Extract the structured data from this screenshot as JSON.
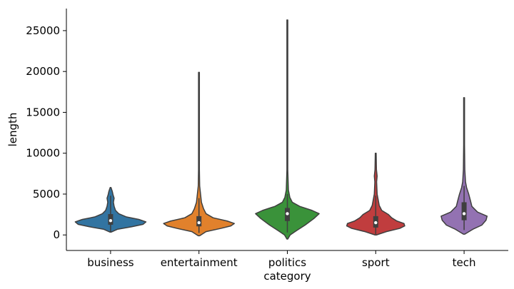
{
  "chart_data": {
    "type": "violin",
    "xlabel": "category",
    "ylabel": "length",
    "ylim": [
      -1900,
      27700
    ],
    "yticks": [
      0,
      5000,
      10000,
      15000,
      20000,
      25000
    ],
    "grid": false,
    "categories": [
      "business",
      "entertainment",
      "politics",
      "sport",
      "tech"
    ],
    "colors": [
      "#3274a1",
      "#e1812c",
      "#3a923a",
      "#c03d3e",
      "#9372b2"
    ],
    "violins": [
      {
        "category": "business",
        "min": 350,
        "max": 5800,
        "q1": 1250,
        "median": 1750,
        "q3": 2550,
        "whisker_low": 350,
        "whisker_high": 4800,
        "profile": [
          [
            350,
            0.02
          ],
          [
            700,
            0.2
          ],
          [
            1000,
            0.6
          ],
          [
            1300,
            0.92
          ],
          [
            1600,
            1.0
          ],
          [
            1900,
            0.8
          ],
          [
            2200,
            0.45
          ],
          [
            2600,
            0.23
          ],
          [
            3000,
            0.14
          ],
          [
            3500,
            0.1
          ],
          [
            4000,
            0.08
          ],
          [
            4500,
            0.1
          ],
          [
            4900,
            0.07
          ],
          [
            5300,
            0.05
          ],
          [
            5800,
            0.01
          ]
        ]
      },
      {
        "category": "entertainment",
        "min": -100,
        "max": 19900,
        "q1": 1050,
        "median": 1500,
        "q3": 2300,
        "whisker_low": 250,
        "whisker_high": 4500,
        "profile": [
          [
            -100,
            0.02
          ],
          [
            400,
            0.2
          ],
          [
            800,
            0.62
          ],
          [
            1100,
            0.9
          ],
          [
            1400,
            1.0
          ],
          [
            1700,
            0.8
          ],
          [
            2100,
            0.4
          ],
          [
            2600,
            0.2
          ],
          [
            3200,
            0.13
          ],
          [
            4000,
            0.07
          ],
          [
            4800,
            0.05
          ],
          [
            6000,
            0.02
          ],
          [
            8000,
            0.012
          ],
          [
            12000,
            0.01
          ],
          [
            16000,
            0.009
          ],
          [
            19900,
            0.008
          ]
        ]
      },
      {
        "category": "politics",
        "min": -500,
        "max": 26300,
        "q1": 1700,
        "median": 2600,
        "q3": 3300,
        "whisker_low": 300,
        "whisker_high": 5000,
        "profile": [
          [
            -500,
            0.01
          ],
          [
            0,
            0.08
          ],
          [
            500,
            0.25
          ],
          [
            1200,
            0.5
          ],
          [
            2000,
            0.75
          ],
          [
            2600,
            0.9
          ],
          [
            3000,
            0.7
          ],
          [
            3500,
            0.35
          ],
          [
            4000,
            0.14
          ],
          [
            4600,
            0.07
          ],
          [
            5500,
            0.03
          ],
          [
            8000,
            0.012
          ],
          [
            12000,
            0.01
          ],
          [
            18000,
            0.008
          ],
          [
            26300,
            0.007
          ]
        ]
      },
      {
        "category": "sport",
        "min": 0,
        "max": 10000,
        "q1": 900,
        "median": 1500,
        "q3": 2300,
        "whisker_low": 100,
        "whisker_high": 4800,
        "profile": [
          [
            0,
            0.02
          ],
          [
            400,
            0.3
          ],
          [
            800,
            0.68
          ],
          [
            1100,
            0.82
          ],
          [
            1400,
            0.8
          ],
          [
            1700,
            0.6
          ],
          [
            2100,
            0.45
          ],
          [
            2500,
            0.36
          ],
          [
            3000,
            0.17
          ],
          [
            3600,
            0.1
          ],
          [
            4300,
            0.07
          ],
          [
            5000,
            0.04
          ],
          [
            6500,
            0.025
          ],
          [
            7200,
            0.04
          ],
          [
            8000,
            0.02
          ],
          [
            10000,
            0.01
          ]
        ]
      },
      {
        "category": "tech",
        "min": 100,
        "max": 16800,
        "q1": 1800,
        "median": 2600,
        "q3": 4000,
        "whisker_low": 600,
        "whisker_high": 6000,
        "profile": [
          [
            100,
            0.02
          ],
          [
            700,
            0.25
          ],
          [
            1200,
            0.5
          ],
          [
            1800,
            0.62
          ],
          [
            2300,
            0.65
          ],
          [
            2800,
            0.38
          ],
          [
            3500,
            0.22
          ],
          [
            4200,
            0.18
          ],
          [
            5000,
            0.13
          ],
          [
            5800,
            0.07
          ],
          [
            6500,
            0.04
          ],
          [
            8000,
            0.02
          ],
          [
            11000,
            0.012
          ],
          [
            14000,
            0.01
          ],
          [
            16800,
            0.008
          ]
        ]
      }
    ]
  }
}
